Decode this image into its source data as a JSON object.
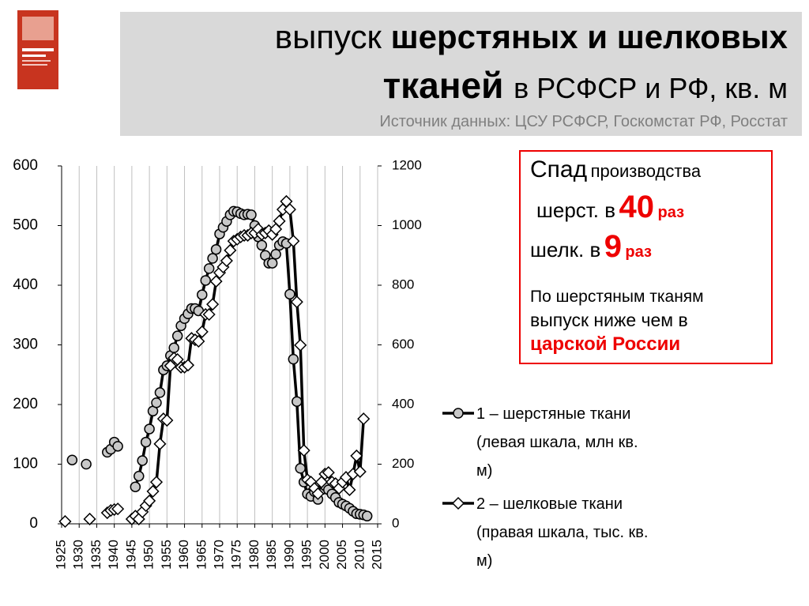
{
  "header": {
    "title": [
      "выпуск",
      "шерстяных и шелковых",
      "тканей",
      "в РСФСР и РФ, кв. м"
    ],
    "source": "Источник данных: ЦСУ РСФСР, Госкомстат РФ, Росстат"
  },
  "annotation": {
    "line1": [
      "Спад",
      "производства"
    ],
    "line2": [
      "шерст. в",
      "40",
      "раз"
    ],
    "line3": [
      "шелк. в",
      "9",
      "раз"
    ],
    "note": [
      "По шерстяным тканям",
      "выпуск ниже чем в",
      "царской России"
    ]
  },
  "chart_data": {
    "type": "line",
    "x": [
      1926,
      1927,
      1928,
      1929,
      1930,
      1931,
      1932,
      1933,
      1934,
      1935,
      1936,
      1937,
      1938,
      1939,
      1940,
      1941,
      1942,
      1943,
      1944,
      1945,
      1946,
      1947,
      1948,
      1949,
      1950,
      1951,
      1952,
      1953,
      1954,
      1955,
      1956,
      1957,
      1958,
      1959,
      1960,
      1961,
      1962,
      1963,
      1964,
      1965,
      1966,
      1967,
      1968,
      1969,
      1970,
      1971,
      1972,
      1973,
      1974,
      1975,
      1976,
      1977,
      1978,
      1979,
      1980,
      1981,
      1982,
      1983,
      1984,
      1985,
      1986,
      1987,
      1988,
      1989,
      1990,
      1991,
      1992,
      1993,
      1994,
      1995,
      1996,
      1997,
      1998,
      1999,
      2000,
      2001,
      2002,
      2003,
      2004,
      2005,
      2006,
      2007,
      2008,
      2009,
      2010,
      2011,
      2012
    ],
    "series": [
      {
        "name": "1 – шерстяные ткани (левая шкала, млн кв. м)",
        "color": "#000000",
        "marker": "circle",
        "values": [
          null,
          null,
          107,
          null,
          null,
          null,
          100,
          null,
          null,
          null,
          null,
          null,
          120,
          125,
          137,
          130,
          null,
          null,
          null,
          null,
          62,
          80,
          106,
          137,
          159,
          189,
          203,
          220,
          258,
          265,
          282,
          295,
          315,
          332,
          344,
          352,
          361,
          361,
          357,
          384,
          408,
          428,
          445,
          460,
          486,
          497,
          507,
          518,
          524,
          523,
          520,
          518,
          519,
          518,
          500,
          481,
          467,
          450,
          437,
          437,
          452,
          467,
          473,
          470,
          385,
          276,
          205,
          93,
          70,
          50,
          46,
          54,
          41,
          57,
          64,
          57,
          50,
          44,
          36,
          33,
          30,
          26,
          21,
          17,
          16,
          15,
          13
        ]
      },
      {
        "name": "2 – шелковые ткани (правая шкала, тыс. кв. м)",
        "color": "#000000",
        "marker": "diamond",
        "axis": "y2",
        "values": [
          8,
          null,
          null,
          null,
          null,
          null,
          null,
          16,
          null,
          null,
          null,
          null,
          37,
          45,
          48,
          50,
          null,
          null,
          null,
          16,
          26,
          16,
          40,
          61,
          77,
          109,
          140,
          268,
          352,
          347,
          530,
          556,
          551,
          525,
          525,
          532,
          622,
          617,
          612,
          644,
          702,
          702,
          736,
          813,
          842,
          861,
          882,
          917,
          948,
          954,
          962,
          967,
          967,
          975,
          975,
          988,
          970,
          975,
          983,
          970,
          988,
          1015,
          1054,
          1081,
          1054,
          948,
          744,
          599,
          246,
          148,
          140,
          119,
          101,
          140,
          167,
          172,
          140,
          135,
          119,
          140,
          156,
          114,
          167,
          228,
          175,
          352,
          null
        ]
      }
    ],
    "xlim": [
      1925,
      2015
    ],
    "xticks": [
      1925,
      1930,
      1935,
      1940,
      1945,
      1950,
      1955,
      1960,
      1965,
      1970,
      1975,
      1980,
      1985,
      1990,
      1995,
      2000,
      2005,
      2010,
      2015
    ],
    "ylim": [
      0,
      600
    ],
    "yticks": [
      0,
      100,
      200,
      300,
      400,
      500,
      600
    ],
    "y2lim": [
      0,
      1200
    ],
    "y2ticks": [
      0,
      200,
      400,
      600,
      800,
      1000,
      1200
    ],
    "grid": true
  }
}
